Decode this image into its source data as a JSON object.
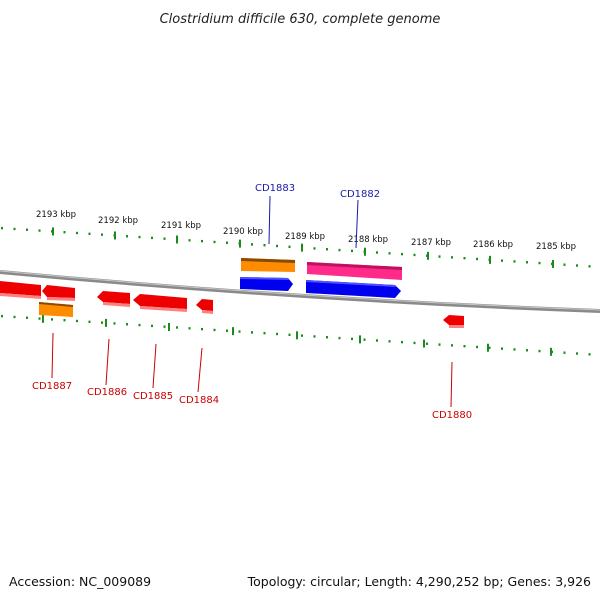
{
  "title": "Clostridium difficile 630, complete genome",
  "footer": {
    "accession": "Accession: NC_009089",
    "summary": "Topology: circular; Length: 4,290,252 bp; Genes: 3,926"
  },
  "colors": {
    "background": "#ffffff",
    "backbone": "#8a8a8a",
    "ticks": "#1a8a1a",
    "label_red": "#cc0000",
    "label_blue": "#1a1aaa",
    "gene_red": "#ee0000",
    "gene_orange": "#ff8c00",
    "gene_blue": "#0000ee",
    "gene_pink": "#ff2a8a"
  },
  "ruler": {
    "tick_labels": [
      "2193 kbp",
      "2192 kbp",
      "2191 kbp",
      "2190 kbp",
      "2189 kbp",
      "2188 kbp",
      "2187 kbp",
      "2186 kbp",
      "2185 kbp"
    ]
  },
  "gene_labels": [
    "CD1887",
    "CD1886",
    "CD1885",
    "CD1884",
    "CD1883",
    "CD1882",
    "CD1880"
  ]
}
